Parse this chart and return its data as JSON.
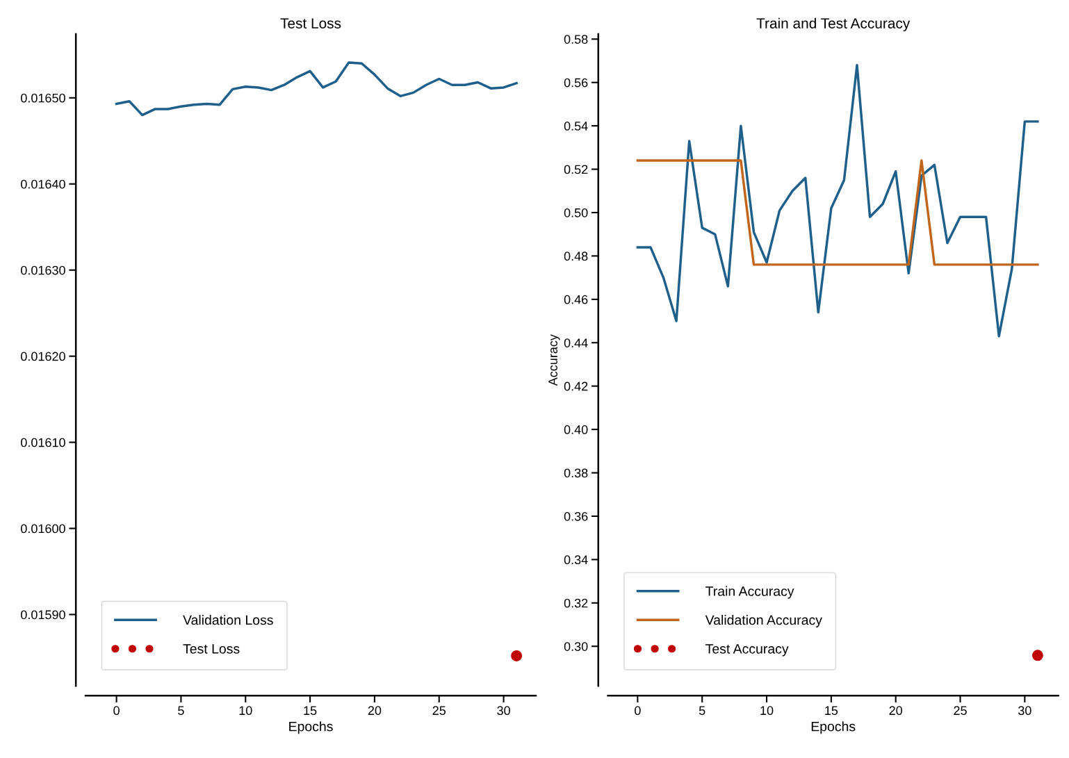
{
  "chart_data": [
    {
      "type": "line",
      "title": "Test Loss",
      "xlabel": "Epochs",
      "xlim": [
        -2.4,
        32.5
      ],
      "xticks": [
        0,
        5,
        10,
        15,
        20,
        25,
        30
      ],
      "ylim": [
        0.015817,
        0.016574
      ],
      "yticks": [
        {
          "value": 0.0159,
          "label": "0.01590"
        },
        {
          "value": 0.016,
          "label": "0.01600"
        },
        {
          "value": 0.0161,
          "label": "0.01610"
        },
        {
          "value": 0.0162,
          "label": "0.01620"
        },
        {
          "value": 0.0163,
          "label": "0.01630"
        },
        {
          "value": 0.0164,
          "label": "0.01640"
        },
        {
          "value": 0.0165,
          "label": "0.01650"
        }
      ],
      "grid": false,
      "legend": "bottom left",
      "series": [
        {
          "name": "Validation Loss",
          "type": "line",
          "color": "#1f5f8b",
          "x": [
            0,
            1,
            2,
            3,
            4,
            5,
            6,
            7,
            8,
            9,
            10,
            11,
            12,
            13,
            14,
            15,
            16,
            17,
            18,
            19,
            20,
            21,
            22,
            23,
            24,
            25,
            26,
            27,
            28,
            29,
            30,
            31
          ],
          "values": [
            0.016493,
            0.016496,
            0.01648,
            0.016487,
            0.016487,
            0.01649,
            0.016492,
            0.016493,
            0.016492,
            0.01651,
            0.016513,
            0.016512,
            0.016509,
            0.016515,
            0.016524,
            0.016531,
            0.016512,
            0.016519,
            0.016541,
            0.01654,
            0.016527,
            0.016511,
            0.016502,
            0.016506,
            0.016515,
            0.016522,
            0.016515,
            0.016515,
            0.016518,
            0.016511,
            0.016512,
            0.016517
          ]
        },
        {
          "name": "Test Loss",
          "type": "scatter",
          "color": "#c00000",
          "marker": "circle",
          "x": [
            31
          ],
          "values": [
            0.015852
          ]
        }
      ]
    },
    {
      "type": "line",
      "title": "Train and Test Accuracy",
      "xlabel": "Epochs",
      "ylabel": "Accuracy",
      "xlim": [
        -2.3,
        32.6
      ],
      "xticks": [
        0,
        5,
        10,
        15,
        20,
        25,
        30
      ],
      "ylim": [
        0.2817,
        0.5823
      ],
      "yticks": [
        {
          "value": 0.3,
          "label": "0.30"
        },
        {
          "value": 0.32,
          "label": "0.32"
        },
        {
          "value": 0.34,
          "label": "0.34"
        },
        {
          "value": 0.36,
          "label": "0.36"
        },
        {
          "value": 0.38,
          "label": "0.38"
        },
        {
          "value": 0.4,
          "label": "0.40"
        },
        {
          "value": 0.42,
          "label": "0.42"
        },
        {
          "value": 0.44,
          "label": "0.44"
        },
        {
          "value": 0.46,
          "label": "0.46"
        },
        {
          "value": 0.48,
          "label": "0.48"
        },
        {
          "value": 0.5,
          "label": "0.50"
        },
        {
          "value": 0.52,
          "label": "0.52"
        },
        {
          "value": 0.54,
          "label": "0.54"
        },
        {
          "value": 0.56,
          "label": "0.56"
        },
        {
          "value": 0.58,
          "label": "0.58"
        }
      ],
      "grid": false,
      "legend": "bottom left",
      "series": [
        {
          "name": "Train Accuracy",
          "type": "line",
          "color": "#1f5f8b",
          "x": [
            0,
            1,
            2,
            3,
            4,
            5,
            6,
            7,
            8,
            9,
            10,
            11,
            12,
            13,
            14,
            15,
            16,
            17,
            18,
            19,
            20,
            21,
            22,
            23,
            24,
            25,
            26,
            27,
            28,
            29,
            30,
            31
          ],
          "values": [
            0.484,
            0.484,
            0.47,
            0.45,
            0.533,
            0.493,
            0.49,
            0.466,
            0.54,
            0.491,
            0.477,
            0.501,
            0.51,
            0.516,
            0.454,
            0.502,
            0.515,
            0.568,
            0.498,
            0.504,
            0.519,
            0.472,
            0.517,
            0.522,
            0.486,
            0.498,
            0.498,
            0.498,
            0.443,
            0.474,
            0.542,
            0.542
          ]
        },
        {
          "name": "Validation Accuracy",
          "type": "line",
          "color": "#c0651a",
          "x": [
            0,
            1,
            2,
            3,
            4,
            5,
            6,
            7,
            8,
            9,
            10,
            11,
            12,
            13,
            14,
            15,
            16,
            17,
            18,
            19,
            20,
            21,
            22,
            23,
            24,
            25,
            26,
            27,
            28,
            29,
            30,
            31
          ],
          "values": [
            0.524,
            0.524,
            0.524,
            0.524,
            0.524,
            0.524,
            0.524,
            0.524,
            0.524,
            0.476,
            0.476,
            0.476,
            0.476,
            0.476,
            0.476,
            0.476,
            0.476,
            0.476,
            0.476,
            0.476,
            0.476,
            0.476,
            0.524,
            0.476,
            0.476,
            0.476,
            0.476,
            0.476,
            0.476,
            0.476,
            0.476,
            0.476
          ]
        },
        {
          "name": "Test Accuracy",
          "type": "scatter",
          "color": "#c00000",
          "marker": "circle",
          "x": [
            31
          ],
          "values": [
            0.2958
          ]
        }
      ]
    }
  ]
}
